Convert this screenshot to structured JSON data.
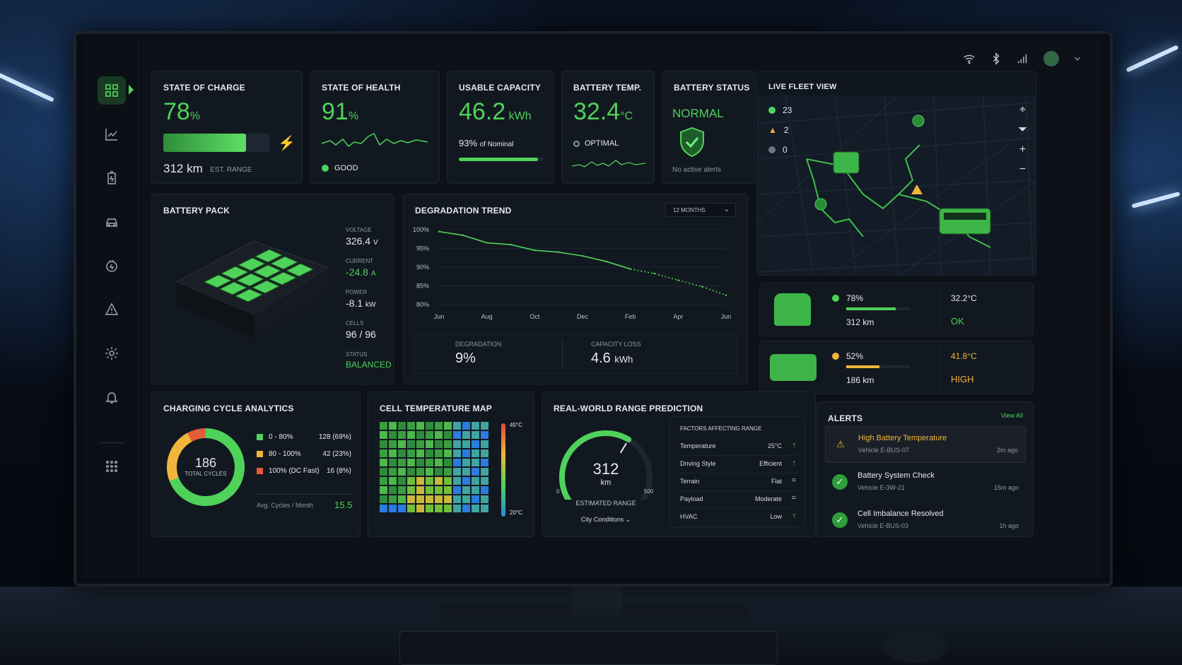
{
  "header": {
    "icons": [
      "wifi-icon",
      "bluetooth-icon",
      "signal-icon",
      "avatar",
      "chevron-down-icon"
    ]
  },
  "soc": {
    "title": "STATE OF CHARGE",
    "value": "78",
    "unit": "%",
    "range": "312 km",
    "range_label": "EST. RANGE",
    "level": 0.78
  },
  "soh": {
    "title": "STATE OF HEALTH",
    "value": "91",
    "unit": "%",
    "status": "GOOD"
  },
  "capacity": {
    "title": "USABLE CAPACITY",
    "value": "46.2",
    "unit": "kWh",
    "nominal": "93%",
    "nominal_label": "of Nominal",
    "level": 0.93
  },
  "temp": {
    "title": "BATTERY TEMP.",
    "value": "32.4",
    "unit": "°C",
    "status": "OPTIMAL"
  },
  "bstatus": {
    "title": "BATTERY STATUS",
    "value": "NORMAL",
    "note": "No active alerts"
  },
  "pack": {
    "title": "BATTERY PACK",
    "voltage_label": "VOLTAGE",
    "voltage": "326.4",
    "voltage_unit": "V",
    "current_label": "CURRENT",
    "current": "-24.8",
    "current_unit": "A",
    "power_label": "POWER",
    "power": "-8.1",
    "power_unit": "kW",
    "cells_label": "CELLS",
    "cells": "96 / 96",
    "status_label": "STATUS",
    "status": "BALANCED"
  },
  "trend": {
    "title": "DEGRADATION TREND",
    "range": "12 MONTHS",
    "deg_label": "DEGRADATION",
    "deg_value": "9%",
    "loss_label": "CAPACITY LOSS",
    "loss_value": "4.6",
    "loss_unit": "kWh"
  },
  "chart_data": {
    "type": "line",
    "x": [
      "Jun",
      "Jul",
      "Aug",
      "Sep",
      "Oct",
      "Nov",
      "Dec",
      "Jan",
      "Feb",
      "Mar",
      "Apr",
      "May",
      "Jun"
    ],
    "xticks": [
      "Jun",
      "Aug",
      "Oct",
      "Dec",
      "Feb",
      "Apr",
      "Jun"
    ],
    "yticks": [
      "100%",
      "95%",
      "90%",
      "85%",
      "80%"
    ],
    "ylim": [
      80,
      100
    ],
    "series": [
      {
        "values": [
          99.5,
          98.5,
          96.5,
          96,
          94.5,
          94,
          93,
          91.5,
          89.5,
          88.3,
          86.5,
          84.8,
          82.5
        ]
      }
    ]
  },
  "cycles": {
    "title": "CHARGING CYCLE ANALYTICS",
    "total": "186",
    "total_label": "TOTAL CYCLES",
    "legend": [
      {
        "label": "0 - 80%",
        "value": "128 (69%)",
        "color": "#4fd25a",
        "frac": 0.69
      },
      {
        "label": "80 - 100%",
        "value": "42 (23%)",
        "color": "#f0b53a",
        "frac": 0.23
      },
      {
        "label": "100% (DC Fast)",
        "value": "16 (8%)",
        "color": "#e25d3a",
        "frac": 0.08
      }
    ],
    "avg_label": "Avg. Cycles / Month",
    "avg": "15.5"
  },
  "cellmap": {
    "title": "CELL TEMPERATURE MAP",
    "max": "45°C",
    "min": "20°C"
  },
  "range": {
    "title": "REAL-WORLD RANGE PREDICTION",
    "value": "312",
    "unit": "km",
    "min": "0",
    "max": "500",
    "label": "ESTIMATED RANGE",
    "condition": "City Conditions",
    "level": 0.624,
    "factors_title": "FACTORS AFFECTING RANGE",
    "factors": [
      {
        "name": "Temperature",
        "value": "25°C",
        "trend": "up"
      },
      {
        "name": "Driving Style",
        "value": "Efficient",
        "trend": "up"
      },
      {
        "name": "Terrain",
        "value": "Flat",
        "trend": "flat"
      },
      {
        "name": "Payload",
        "value": "Moderate",
        "trend": "flat"
      },
      {
        "name": "HVAC",
        "value": "Low",
        "trend": "up"
      }
    ]
  },
  "fleet": {
    "title": "LIVE FLEET VIEW",
    "counts": [
      {
        "value": "23",
        "color": "#4fd25a"
      },
      {
        "value": "2",
        "color": "#f0b53a"
      },
      {
        "value": "0",
        "color": "#6b7683"
      }
    ],
    "vehicles": [
      {
        "soc": "78%",
        "range": "312 km",
        "temp": "32.2°C",
        "status": "OK",
        "color": "#4fd25a",
        "level": 0.78
      },
      {
        "soc": "52%",
        "range": "186 km",
        "temp": "41.8°C",
        "status": "HIGH",
        "color": "#f0b53a",
        "level": 0.52
      }
    ]
  },
  "alerts": {
    "title": "ALERTS",
    "view_all": "View All",
    "items": [
      {
        "title": "High Battery Temperature",
        "vehicle": "Vehicle E-BUS-07",
        "time": "2m ago",
        "kind": "warn"
      },
      {
        "title": "Battery System Check",
        "vehicle": "Vehicle E-3W-21",
        "time": "15m ago",
        "kind": "ok"
      },
      {
        "title": "Cell Imbalance Resolved",
        "vehicle": "Vehicle E-BUS-03",
        "time": "1h ago",
        "kind": "ok"
      }
    ]
  }
}
